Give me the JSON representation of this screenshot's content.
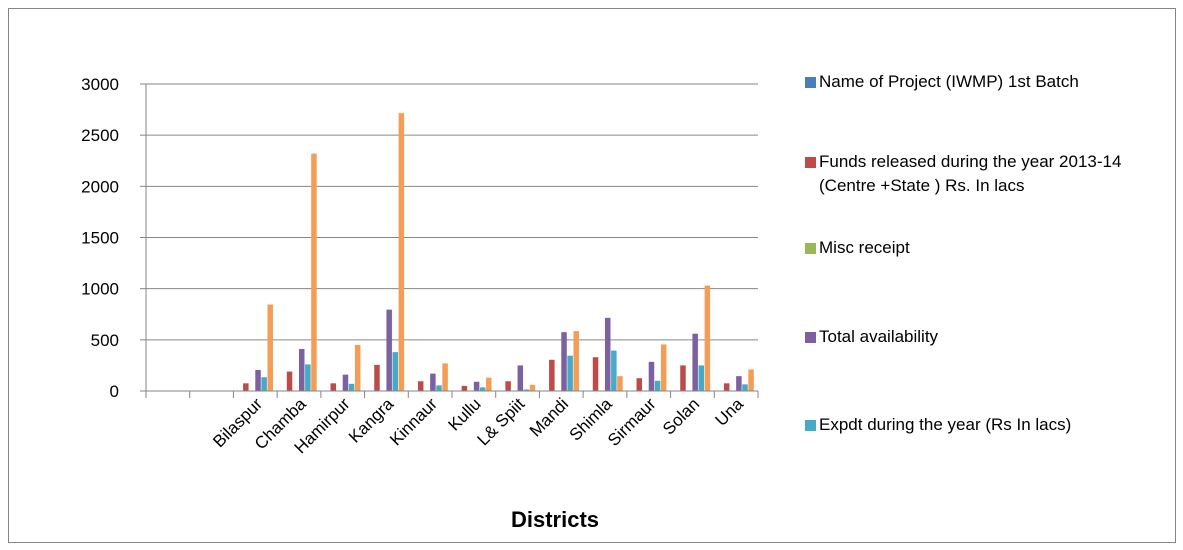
{
  "chart_data": {
    "type": "bar",
    "title": "",
    "xlabel": "Districts",
    "ylabel": "",
    "ylim": [
      0,
      3000
    ],
    "yticks": [
      0,
      500,
      1000,
      1500,
      2000,
      2500,
      3000
    ],
    "grid": true,
    "legend_position": "right",
    "categories": [
      "",
      "",
      "Bilaspur",
      "Chamba",
      "Hamirpur",
      "Kangra",
      "Kinnaur",
      "Kullu",
      "L& Spiit",
      "Mandi",
      "Shimla",
      "Sirmaur",
      "Solan",
      "Una"
    ],
    "series": [
      {
        "name": "Name of Project (IWMP) 1st Batch",
        "color": "#4A7EBB",
        "values": [
          0,
          0,
          0,
          0,
          0,
          0,
          0,
          0,
          0,
          0,
          0,
          0,
          0,
          0
        ]
      },
      {
        "name": "Funds released during the year 2013-14 (Centre +State ) Rs. In lacs",
        "color": "#BE4B48",
        "values": [
          0,
          0,
          75,
          190,
          75,
          255,
          95,
          50,
          95,
          305,
          330,
          125,
          250,
          75
        ]
      },
      {
        "name": "Misc receipt",
        "color": "#98B954",
        "values": [
          0,
          0,
          0,
          0,
          0,
          0,
          0,
          0,
          0,
          0,
          0,
          0,
          0,
          0
        ]
      },
      {
        "name": "Total availability",
        "color": "#7D60A0",
        "values": [
          0,
          0,
          205,
          410,
          160,
          795,
          170,
          90,
          250,
          575,
          715,
          285,
          560,
          145
        ]
      },
      {
        "name": "Expdt during the year (Rs In lacs)",
        "color": "#46AAC5",
        "values": [
          0,
          0,
          135,
          260,
          70,
          380,
          55,
          35,
          15,
          345,
          395,
          100,
          250,
          65
        ]
      },
      {
        "name": "",
        "color": "#F59D56",
        "values": [
          0,
          0,
          845,
          2320,
          450,
          2715,
          270,
          130,
          60,
          585,
          145,
          455,
          1030,
          210
        ]
      }
    ]
  }
}
